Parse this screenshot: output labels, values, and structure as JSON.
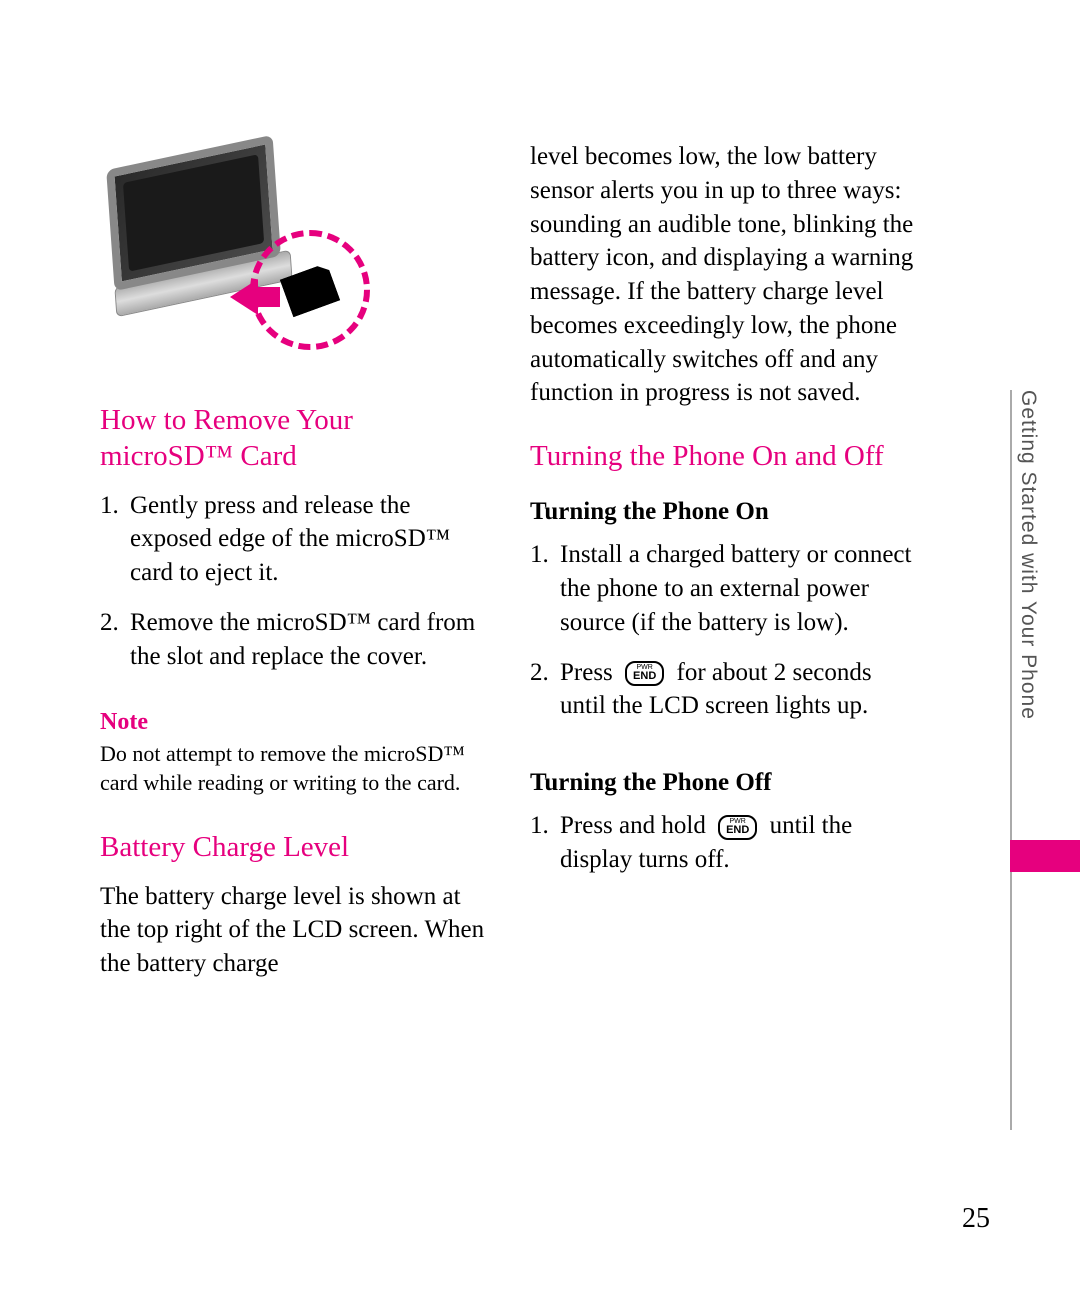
{
  "colors": {
    "accent": "#e6007e",
    "text": "#000000",
    "side_text": "#555555",
    "background": "#ffffff"
  },
  "side_label": "Getting Started with Your Phone",
  "page_number": "25",
  "left_col": {
    "heading1": "How to Remove Your microSD™ Card",
    "steps1": [
      "Gently press and release the exposed edge of the microSD™ card to eject it.",
      "Remove the microSD™ card from the slot and replace the cover."
    ],
    "note_title": "Note",
    "note_text": "Do not attempt to remove the microSD™ card while reading or writing to the card.",
    "heading2": "Battery Charge Level",
    "para2": "The battery charge level is shown at the top right of the LCD screen. When the battery charge"
  },
  "right_col": {
    "para_top": "level becomes low, the low battery sensor alerts you in up to three ways: sounding an audible tone, blinking the battery icon, and displaying a warning message. If the battery charge level becomes exceedingly low, the phone automatically switches off and any function in progress is not saved.",
    "heading": "Turning the Phone On and Off",
    "sub1": "Turning the Phone On",
    "steps1": [
      "Install a charged battery or connect the phone to an external power source (if the battery is low).",
      "Press [END] for about 2 seconds until the LCD screen lights up."
    ],
    "sub2": "Turning the Phone Off",
    "steps2": [
      "Press and hold [END] until the display turns off."
    ],
    "end_key_top": "PWR",
    "end_key_bottom": "END"
  }
}
